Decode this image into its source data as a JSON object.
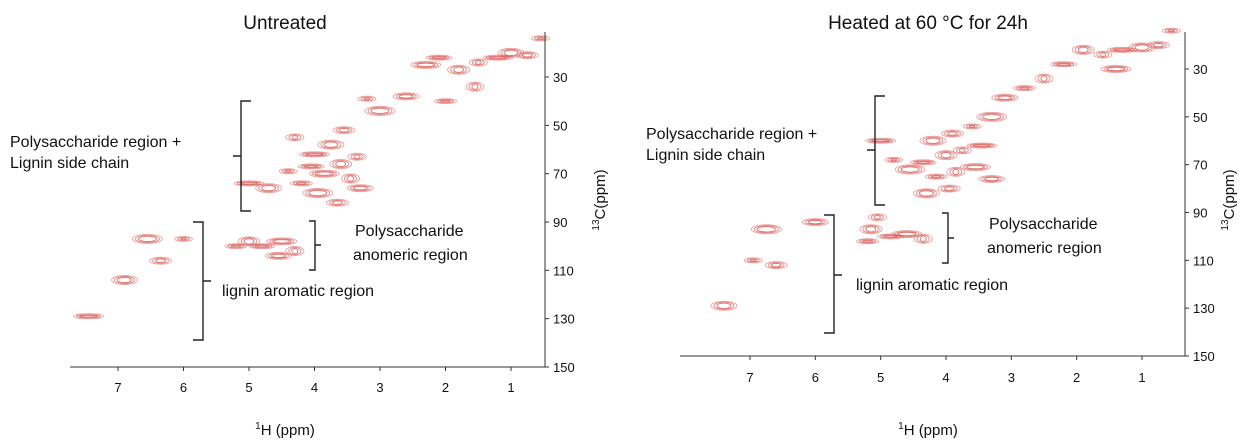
{
  "panels": [
    {
      "title": "Untreated",
      "xlabel_prefix": "1",
      "xlabel": "H (ppm)",
      "ylabel_prefix": "13",
      "ylabel": "C(ppm)",
      "annotations": {
        "polysaccharide_side_chain_line1": "Polysaccharide region +",
        "polysaccharide_side_chain_line2": "Lignin side chain",
        "anomeric_line1": "Polysaccharide",
        "anomeric_line2": "anomeric region",
        "aromatic": "lignin aromatic region"
      }
    },
    {
      "title": "Heated at 60 °C for 24h",
      "xlabel_prefix": "1",
      "xlabel": "H (ppm)",
      "ylabel_prefix": "13",
      "ylabel": "C(ppm)",
      "annotations": {
        "polysaccharide_side_chain_line1": "Polysaccharide region +",
        "polysaccharide_side_chain_line2": "Lignin side chain",
        "anomeric_line1": "Polysaccharide",
        "anomeric_line2": "anomeric region",
        "aromatic": "lignin aromatic region"
      }
    }
  ],
  "colors": {
    "peak": "#d9534f",
    "axis": "#333333"
  },
  "chart_data": [
    {
      "type": "scatter",
      "title": "Untreated",
      "xlabel": "1H (ppm)",
      "ylabel": "13C(ppm)",
      "x_ticks": [
        7,
        6,
        5,
        4,
        3,
        2,
        1
      ],
      "y_ticks": [
        30,
        50,
        70,
        90,
        110,
        130,
        150
      ],
      "x_reversed": true,
      "series": [
        {
          "peaks": [
            {
              "x": 0.55,
              "y": 14
            },
            {
              "x": 0.75,
              "y": 21
            },
            {
              "x": 1.0,
              "y": 20
            },
            {
              "x": 1.2,
              "y": 22
            },
            {
              "x": 1.5,
              "y": 24
            },
            {
              "x": 1.8,
              "y": 27
            },
            {
              "x": 2.1,
              "y": 22
            },
            {
              "x": 2.3,
              "y": 25
            },
            {
              "x": 1.55,
              "y": 34
            },
            {
              "x": 2.0,
              "y": 40
            },
            {
              "x": 2.6,
              "y": 38
            },
            {
              "x": 3.0,
              "y": 44
            },
            {
              "x": 3.2,
              "y": 39
            },
            {
              "x": 3.55,
              "y": 52
            },
            {
              "x": 3.75,
              "y": 58
            },
            {
              "x": 4.0,
              "y": 62
            },
            {
              "x": 3.35,
              "y": 63
            },
            {
              "x": 3.6,
              "y": 66
            },
            {
              "x": 4.05,
              "y": 67
            },
            {
              "x": 3.85,
              "y": 70
            },
            {
              "x": 3.45,
              "y": 72
            },
            {
              "x": 4.2,
              "y": 74
            },
            {
              "x": 3.3,
              "y": 76
            },
            {
              "x": 3.95,
              "y": 78
            },
            {
              "x": 4.4,
              "y": 69
            },
            {
              "x": 3.65,
              "y": 82
            },
            {
              "x": 4.7,
              "y": 76
            },
            {
              "x": 5.0,
              "y": 74
            },
            {
              "x": 4.3,
              "y": 55
            },
            {
              "x": 5.0,
              "y": 98
            },
            {
              "x": 4.8,
              "y": 100
            },
            {
              "x": 4.5,
              "y": 98
            },
            {
              "x": 4.3,
              "y": 102
            },
            {
              "x": 5.2,
              "y": 100
            },
            {
              "x": 4.55,
              "y": 104
            },
            {
              "x": 6.55,
              "y": 97
            },
            {
              "x": 6.0,
              "y": 97
            },
            {
              "x": 6.35,
              "y": 106
            },
            {
              "x": 6.9,
              "y": 114
            },
            {
              "x": 7.45,
              "y": 129
            }
          ]
        }
      ]
    },
    {
      "type": "scatter",
      "title": "Heated at 60 °C for 24h",
      "xlabel": "1H (ppm)",
      "ylabel": "13C(ppm)",
      "x_ticks": [
        7,
        6,
        5,
        4,
        3,
        2,
        1
      ],
      "y_ticks": [
        30,
        50,
        70,
        90,
        110,
        130,
        150
      ],
      "x_reversed": true,
      "series": [
        {
          "peaks": [
            {
              "x": 0.55,
              "y": 14
            },
            {
              "x": 0.75,
              "y": 20
            },
            {
              "x": 1.0,
              "y": 21
            },
            {
              "x": 1.3,
              "y": 22
            },
            {
              "x": 1.6,
              "y": 24
            },
            {
              "x": 1.9,
              "y": 22
            },
            {
              "x": 2.2,
              "y": 28
            },
            {
              "x": 1.4,
              "y": 30
            },
            {
              "x": 2.5,
              "y": 34
            },
            {
              "x": 2.8,
              "y": 38
            },
            {
              "x": 3.1,
              "y": 42
            },
            {
              "x": 3.3,
              "y": 50
            },
            {
              "x": 3.6,
              "y": 54
            },
            {
              "x": 3.9,
              "y": 57
            },
            {
              "x": 4.2,
              "y": 60
            },
            {
              "x": 3.45,
              "y": 62
            },
            {
              "x": 3.75,
              "y": 64
            },
            {
              "x": 4.0,
              "y": 66
            },
            {
              "x": 4.35,
              "y": 69
            },
            {
              "x": 3.55,
              "y": 71
            },
            {
              "x": 3.85,
              "y": 73
            },
            {
              "x": 4.15,
              "y": 75
            },
            {
              "x": 3.3,
              "y": 76
            },
            {
              "x": 4.55,
              "y": 72
            },
            {
              "x": 4.8,
              "y": 68
            },
            {
              "x": 3.95,
              "y": 80
            },
            {
              "x": 4.3,
              "y": 82
            },
            {
              "x": 5.0,
              "y": 60
            },
            {
              "x": 5.05,
              "y": 92
            },
            {
              "x": 5.15,
              "y": 97
            },
            {
              "x": 4.85,
              "y": 100
            },
            {
              "x": 4.6,
              "y": 99
            },
            {
              "x": 4.35,
              "y": 101
            },
            {
              "x": 5.2,
              "y": 102
            },
            {
              "x": 6.0,
              "y": 94
            },
            {
              "x": 6.75,
              "y": 97
            },
            {
              "x": 6.95,
              "y": 110
            },
            {
              "x": 6.6,
              "y": 112
            },
            {
              "x": 7.4,
              "y": 129
            }
          ]
        }
      ]
    }
  ]
}
